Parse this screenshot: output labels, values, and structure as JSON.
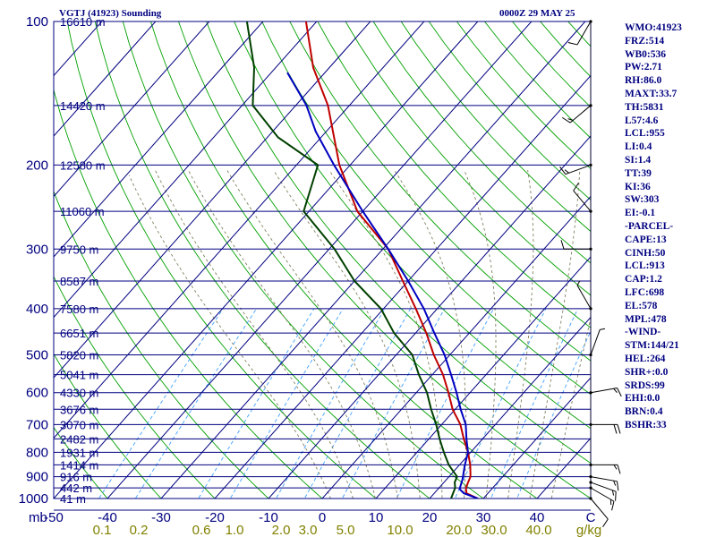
{
  "header": {
    "title": "VGTJ (41923) Sounding",
    "time": "0000Z 29 MAY 25"
  },
  "stats": [
    "WMO:41923",
    "FRZ:514",
    "WB0:536",
    "PW:2.71",
    "RH:86.0",
    "MAXT:33.7",
    "TH:5831",
    "L57:4.6",
    "LCL:955",
    "LI:0.4",
    "SI:1.4",
    "TT:39",
    "KI:36",
    "SW:303",
    "EI:-0.1",
    "-PARCEL-",
    "CAPE:13",
    "CINH:50",
    "LCL:913",
    "CAP:1.2",
    "LFC:698",
    "EL:578",
    "MPL:478",
    "-WIND-",
    "STM:144/21",
    "HEL:264",
    "SHR+:0.0",
    "SRDS:99",
    "EHI:0.0",
    "BRN:0.4",
    "BSHR:33"
  ],
  "colors": {
    "isobar": "#000080",
    "isotherm": "#000080",
    "dry_adiabat": "#00a000",
    "moist_adiabat": "#808060",
    "mixing_ratio": "#40a0ff",
    "temperature": "#c00000",
    "dewpoint": "#004000",
    "parcel": "#0000c0",
    "wind": "#000000",
    "axis_text": "#000080",
    "mixing_text": "#808000"
  },
  "chart_data": {
    "type": "line",
    "diagram": "skew-T log-p",
    "xlabel": "C",
    "ylabel": "mb",
    "xlim": [
      -50,
      50
    ],
    "ylim": [
      1000,
      100
    ],
    "pressure_ticks": [
      100,
      200,
      300,
      400,
      500,
      600,
      700,
      800,
      900,
      1000
    ],
    "temperature_ticks": [
      "-50",
      "-40",
      "-30",
      "-20",
      "-10",
      "0",
      "10",
      "20",
      "30",
      "40"
    ],
    "mixing_ratio_label": "g/kg",
    "mixing_ratio_ticks": [
      "0.1",
      "0.2",
      "0.6",
      "1.0",
      "2.0",
      "3.0",
      "5.0",
      "10.0",
      "20.0",
      "30.0",
      "40.0"
    ],
    "mixing_ratio_values": [
      0.1,
      0.2,
      0.6,
      1.0,
      2.0,
      3.0,
      5.0,
      10.0,
      20.0,
      30.0,
      40.0
    ],
    "height_levels": [
      {
        "p": 100,
        "label": "16610 m"
      },
      {
        "p": 150,
        "label": "14420 m"
      },
      {
        "p": 200,
        "label": "12580 m"
      },
      {
        "p": 250,
        "label": "11060 m"
      },
      {
        "p": 300,
        "label": "9750 m"
      },
      {
        "p": 350,
        "label": "8587 m"
      },
      {
        "p": 400,
        "label": "7580 m"
      },
      {
        "p": 450,
        "label": "6651 m"
      },
      {
        "p": 500,
        "label": "5820 m"
      },
      {
        "p": 550,
        "label": "5041 m"
      },
      {
        "p": 600,
        "label": "4330 m"
      },
      {
        "p": 650,
        "label": "3676 m"
      },
      {
        "p": 700,
        "label": "3070 m"
      },
      {
        "p": 750,
        "label": "2482 m"
      },
      {
        "p": 800,
        "label": "1931 m"
      },
      {
        "p": 850,
        "label": "1414 m"
      },
      {
        "p": 900,
        "label": "916 m"
      },
      {
        "p": 950,
        "label": "442 m"
      },
      {
        "p": 1000,
        "label": "41 m"
      }
    ],
    "series": [
      {
        "key": "temperature",
        "points": [
          [
            1000,
            29
          ],
          [
            975,
            26
          ],
          [
            950,
            25
          ],
          [
            925,
            24.5
          ],
          [
            900,
            24
          ],
          [
            850,
            22
          ],
          [
            800,
            19.5
          ],
          [
            750,
            16.5
          ],
          [
            700,
            13.5
          ],
          [
            650,
            9.5
          ],
          [
            600,
            6
          ],
          [
            550,
            2
          ],
          [
            500,
            -3
          ],
          [
            450,
            -8
          ],
          [
            400,
            -14
          ],
          [
            350,
            -21
          ],
          [
            300,
            -29
          ],
          [
            250,
            -41
          ],
          [
            200,
            -52
          ],
          [
            150,
            -64
          ],
          [
            125,
            -73
          ],
          [
            100,
            -82
          ]
        ]
      },
      {
        "key": "dewpoint",
        "points": [
          [
            1000,
            24
          ],
          [
            975,
            23.5
          ],
          [
            950,
            23
          ],
          [
            925,
            22
          ],
          [
            900,
            21.5
          ],
          [
            850,
            18
          ],
          [
            800,
            15
          ],
          [
            750,
            12
          ],
          [
            700,
            9
          ],
          [
            650,
            5.5
          ],
          [
            600,
            2
          ],
          [
            550,
            -2.5
          ],
          [
            500,
            -7
          ],
          [
            450,
            -14
          ],
          [
            400,
            -20.5
          ],
          [
            350,
            -30
          ],
          [
            300,
            -39
          ],
          [
            250,
            -51
          ],
          [
            200,
            -56
          ],
          [
            175,
            -68
          ],
          [
            150,
            -78
          ],
          [
            125,
            -84
          ],
          [
            100,
            -93
          ]
        ]
      },
      {
        "key": "parcel",
        "points": [
          [
            1000,
            29
          ],
          [
            975,
            25.5
          ],
          [
            955,
            24
          ],
          [
            913,
            23
          ],
          [
            850,
            21
          ],
          [
            800,
            19.5
          ],
          [
            750,
            17
          ],
          [
            700,
            14.5
          ],
          [
            650,
            11
          ],
          [
            600,
            7.5
          ],
          [
            550,
            3.5
          ],
          [
            500,
            -1
          ],
          [
            450,
            -6.5
          ],
          [
            400,
            -12.5
          ],
          [
            350,
            -20
          ],
          [
            300,
            -29
          ],
          [
            250,
            -40
          ],
          [
            200,
            -53
          ],
          [
            170,
            -62
          ],
          [
            150,
            -68
          ],
          [
            128,
            -77
          ]
        ]
      }
    ],
    "wind_barbs": [
      {
        "p": 1000,
        "dir": 140,
        "spd": 10
      },
      {
        "p": 950,
        "dir": 120,
        "spd": 15
      },
      {
        "p": 925,
        "dir": 110,
        "spd": 15
      },
      {
        "p": 900,
        "dir": 100,
        "spd": 15
      },
      {
        "p": 850,
        "dir": 90,
        "spd": 15
      },
      {
        "p": 700,
        "dir": 90,
        "spd": 20
      },
      {
        "p": 600,
        "dir": 80,
        "spd": 15
      },
      {
        "p": 500,
        "dir": 20,
        "spd": 5
      },
      {
        "p": 400,
        "dir": 330,
        "spd": 5
      },
      {
        "p": 300,
        "dir": 270,
        "spd": 10
      },
      {
        "p": 250,
        "dir": 320,
        "spd": 10
      },
      {
        "p": 200,
        "dir": 250,
        "spd": 15
      },
      {
        "p": 150,
        "dir": 230,
        "spd": 15
      },
      {
        "p": 100,
        "dir": 210,
        "spd": 10
      }
    ]
  }
}
